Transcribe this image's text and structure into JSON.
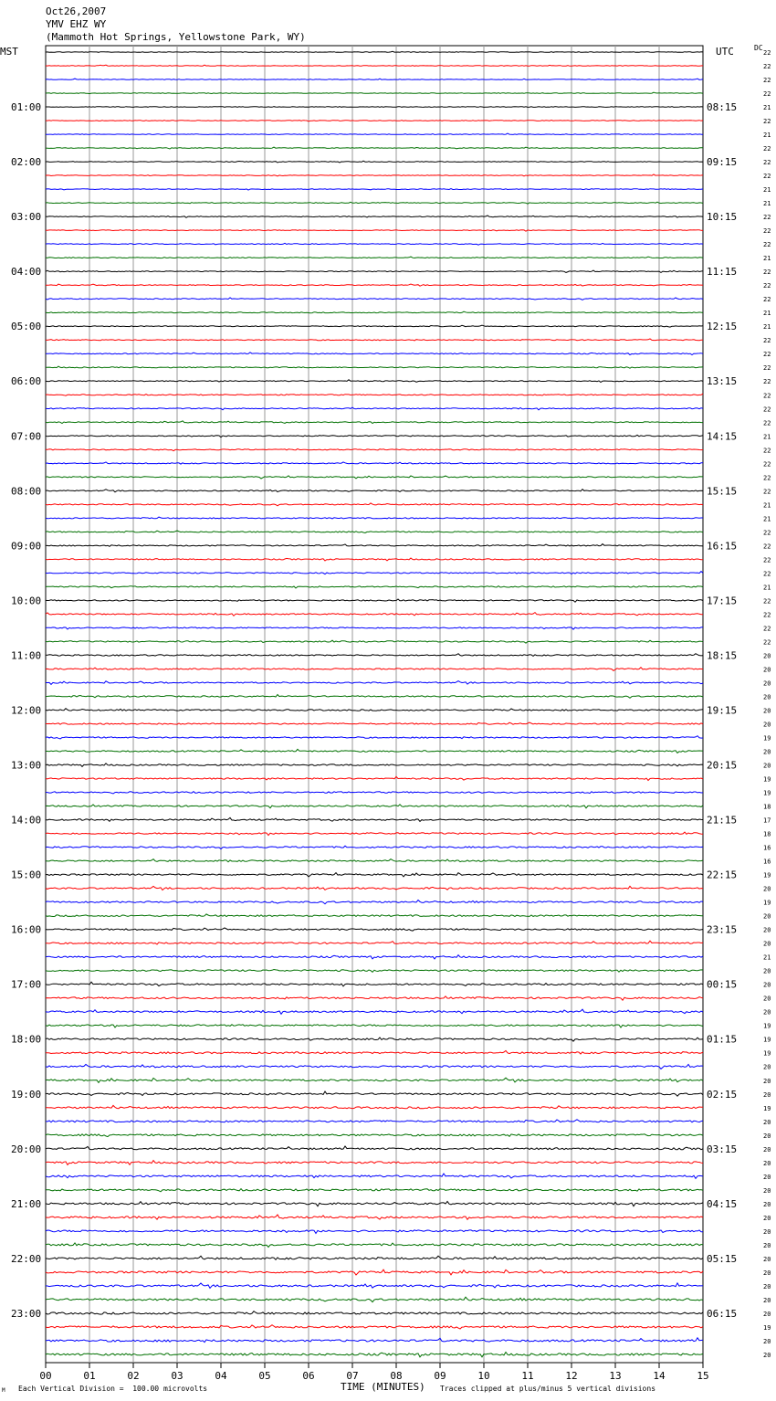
{
  "header": {
    "date": "Oct26,2007",
    "station": "YMV EHZ WY",
    "location": "(Mammoth Hot Springs, Yellowstone Park, WY)"
  },
  "left_label": "MST",
  "right_label": "UTC",
  "dc_label": "DC",
  "footer": {
    "scale_note": "Each Vertical Division =  100.00 microvolts",
    "xlabel": "TIME (MINUTES)",
    "clip_note": "Traces clipped at plus/minus 5 vertical divisions",
    "corner_mark": "M"
  },
  "chart_data": {
    "type": "line",
    "title": "YMV EHZ WY",
    "xlabel": "TIME (MINUTES)",
    "xlim": [
      0,
      15
    ],
    "x_ticks": [
      "00",
      "01",
      "02",
      "03",
      "04",
      "05",
      "06",
      "07",
      "08",
      "09",
      "10",
      "11",
      "12",
      "13",
      "14",
      "15"
    ],
    "rows_per_hour": 4,
    "num_rows": 96,
    "trace_colors": [
      "#000000",
      "#ff0000",
      "#0000ff",
      "#007000"
    ],
    "mst_hour_labels": [
      "",
      "01:00",
      "02:00",
      "03:00",
      "04:00",
      "05:00",
      "06:00",
      "07:00",
      "08:00",
      "09:00",
      "10:00",
      "11:00",
      "12:00",
      "13:00",
      "14:00",
      "15:00",
      "16:00",
      "17:00",
      "18:00",
      "19:00",
      "20:00",
      "21:00",
      "22:00",
      "23:00"
    ],
    "utc_hour_labels": [
      "",
      "08:15",
      "09:15",
      "10:15",
      "11:15",
      "12:15",
      "13:15",
      "14:15",
      "15:15",
      "16:15",
      "17:15",
      "18:15",
      "19:15",
      "20:15",
      "21:15",
      "22:15",
      "23:15",
      "00:15",
      "01:15",
      "02:15",
      "03:15",
      "04:15",
      "05:15",
      "06:15"
    ],
    "dc_offsets": [
      22,
      22,
      22,
      22,
      21,
      22,
      21,
      22,
      22,
      22,
      21,
      21,
      22,
      22,
      22,
      21,
      22,
      22,
      22,
      21,
      21,
      22,
      22,
      22,
      22,
      22,
      22,
      22,
      21,
      22,
      22,
      22,
      22,
      21,
      21,
      22,
      22,
      22,
      22,
      21,
      22,
      22,
      22,
      22,
      20,
      20,
      20,
      20,
      20,
      20,
      19,
      20,
      20,
      19,
      19,
      18,
      17,
      18,
      16,
      16,
      19,
      20,
      19,
      20,
      20,
      20,
      21,
      20,
      20,
      20,
      20,
      19,
      19,
      19,
      20,
      20,
      20,
      19,
      20,
      20,
      20,
      20,
      20,
      20,
      20,
      20,
      20,
      20,
      20,
      20,
      20,
      20,
      20,
      19,
      20,
      20
    ]
  }
}
